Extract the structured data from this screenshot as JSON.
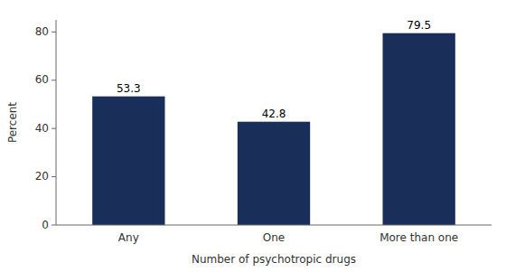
{
  "chart_data": {
    "type": "bar",
    "categories": [
      "Any",
      "One",
      "More than one"
    ],
    "values": [
      53.3,
      42.8,
      79.5
    ],
    "color": "#1a2e5a",
    "xlabel": "Number of psychotropic drugs",
    "ylabel": "Percent",
    "ylim": [
      0,
      85
    ],
    "yticks": [
      0,
      20,
      40,
      60,
      80
    ],
    "grid": false,
    "data_labels": true
  }
}
